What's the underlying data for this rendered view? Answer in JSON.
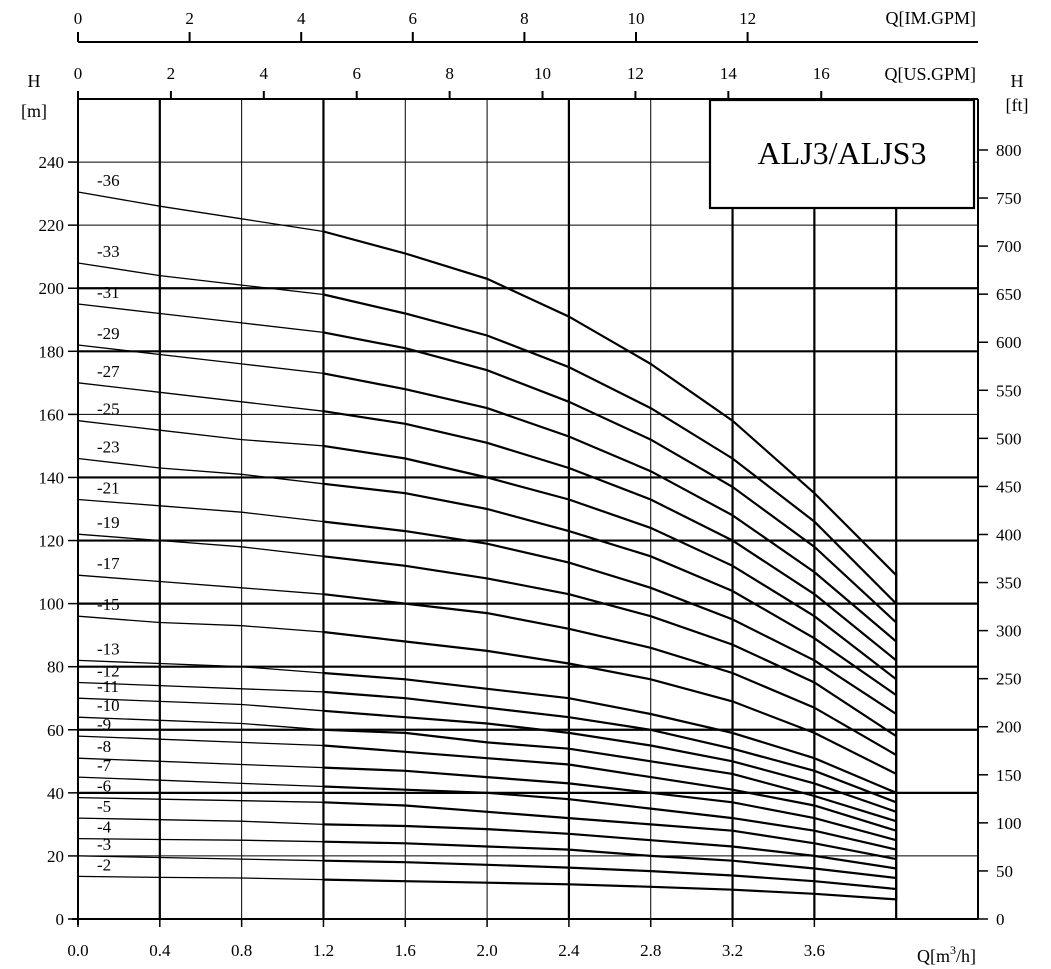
{
  "chart_data": {
    "type": "line",
    "title": "ALJ3/ALJS3",
    "x_axis": {
      "label": "Q[m³/h]",
      "label_main": "Q[m",
      "label_sup": "3",
      "label_tail": "/h]",
      "range": [
        0,
        4.0
      ],
      "ticks": [
        "0.0",
        "0.4",
        "0.8",
        "1.2",
        "1.6",
        "2.0",
        "2.4",
        "2.8",
        "3.2",
        "3.6"
      ]
    },
    "x_axis_top_us": {
      "label": "Q[US.GPM]",
      "ticks": [
        "0",
        "2",
        "4",
        "6",
        "8",
        "10",
        "12",
        "14",
        "16"
      ]
    },
    "x_axis_top_im": {
      "label": "Q[IM.GPM]",
      "ticks": [
        "0",
        "2",
        "4",
        "6",
        "8",
        "10",
        "12"
      ]
    },
    "y_axis_left": {
      "label_top": "H",
      "label_unit": "[m]",
      "range": [
        0,
        260
      ],
      "ticks": [
        "0",
        "20",
        "40",
        "60",
        "80",
        "100",
        "120",
        "140",
        "160",
        "180",
        "200",
        "220",
        "240"
      ]
    },
    "y_axis_right": {
      "label_top": "H",
      "label_unit": "[ft]",
      "ticks": [
        "0",
        "50",
        "100",
        "150",
        "200",
        "250",
        "300",
        "350",
        "400",
        "450",
        "500",
        "550",
        "600",
        "650",
        "700",
        "750",
        "800"
      ]
    },
    "grid": true,
    "series": [
      {
        "name": "-36",
        "x": [
          0,
          0.4,
          0.8,
          1.2,
          1.6,
          2.0,
          2.4,
          2.8,
          3.2,
          3.6,
          4.0
        ],
        "y": [
          230.5,
          226,
          222,
          218,
          211,
          203,
          191,
          176,
          158,
          135,
          109
        ]
      },
      {
        "name": "-33",
        "x": [
          0,
          0.4,
          0.8,
          1.2,
          1.6,
          2.0,
          2.4,
          2.8,
          3.2,
          3.6,
          4.0
        ],
        "y": [
          208,
          204,
          201,
          198,
          192,
          185,
          175,
          162,
          146,
          126,
          100
        ]
      },
      {
        "name": "-31",
        "x": [
          0,
          0.4,
          0.8,
          1.2,
          1.6,
          2.0,
          2.4,
          2.8,
          3.2,
          3.6,
          4.0
        ],
        "y": [
          195,
          192,
          189,
          186,
          181,
          174,
          164,
          152,
          137,
          118,
          94
        ]
      },
      {
        "name": "-29",
        "x": [
          0,
          0.4,
          0.8,
          1.2,
          1.6,
          2.0,
          2.4,
          2.8,
          3.2,
          3.6,
          4.0
        ],
        "y": [
          182,
          179,
          176,
          173,
          168,
          162,
          153,
          142,
          128,
          110,
          88
        ]
      },
      {
        "name": "-27",
        "x": [
          0,
          0.4,
          0.8,
          1.2,
          1.6,
          2.0,
          2.4,
          2.8,
          3.2,
          3.6,
          4.0
        ],
        "y": [
          170,
          167,
          164,
          161,
          157,
          151,
          143,
          133,
          120,
          103,
          82
        ]
      },
      {
        "name": "-25",
        "x": [
          0,
          0.4,
          0.8,
          1.2,
          1.6,
          2.0,
          2.4,
          2.8,
          3.2,
          3.6,
          4.0
        ],
        "y": [
          158,
          155,
          152,
          150,
          146,
          140,
          133,
          124,
          112,
          96,
          76
        ]
      },
      {
        "name": "-23",
        "x": [
          0,
          0.4,
          0.8,
          1.2,
          1.6,
          2.0,
          2.4,
          2.8,
          3.2,
          3.6,
          4.0
        ],
        "y": [
          146,
          143,
          141,
          138,
          135,
          130,
          123,
          115,
          104,
          89,
          71
        ]
      },
      {
        "name": "-21",
        "x": [
          0,
          0.4,
          0.8,
          1.2,
          1.6,
          2.0,
          2.4,
          2.8,
          3.2,
          3.6,
          4.0
        ],
        "y": [
          133,
          131,
          129,
          126,
          123,
          119,
          113,
          105,
          95,
          82,
          65
        ]
      },
      {
        "name": "-19",
        "x": [
          0,
          0.4,
          0.8,
          1.2,
          1.6,
          2.0,
          2.4,
          2.8,
          3.2,
          3.6,
          4.0
        ],
        "y": [
          122,
          120,
          118,
          115,
          112,
          108,
          103,
          96,
          87,
          75,
          58
        ]
      },
      {
        "name": "-17",
        "x": [
          0,
          0.4,
          0.8,
          1.2,
          1.6,
          2.0,
          2.4,
          2.8,
          3.2,
          3.6,
          4.0
        ],
        "y": [
          109,
          107,
          105,
          103,
          100,
          97,
          92,
          86,
          78,
          67,
          52
        ]
      },
      {
        "name": "-15",
        "x": [
          0,
          0.4,
          0.8,
          1.2,
          1.6,
          2.0,
          2.4,
          2.8,
          3.2,
          3.6,
          4.0
        ],
        "y": [
          96,
          94,
          93,
          91,
          88,
          85,
          81,
          76,
          69,
          59,
          46
        ]
      },
      {
        "name": "-13",
        "x": [
          0,
          0.4,
          0.8,
          1.2,
          1.6,
          2.0,
          2.4,
          2.8,
          3.2,
          3.6,
          4.0
        ],
        "y": [
          82,
          81,
          80,
          78,
          76,
          73,
          70,
          65,
          59,
          51,
          40
        ]
      },
      {
        "name": "-12",
        "x": [
          0,
          0.4,
          0.8,
          1.2,
          1.6,
          2.0,
          2.4,
          2.8,
          3.2,
          3.6,
          4.0
        ],
        "y": [
          75,
          74,
          73,
          72,
          70,
          67,
          64,
          60,
          54,
          47,
          37
        ]
      },
      {
        "name": "-11",
        "x": [
          0,
          0.4,
          0.8,
          1.2,
          1.6,
          2.0,
          2.4,
          2.8,
          3.2,
          3.6,
          4.0
        ],
        "y": [
          70,
          69,
          68,
          66,
          64,
          62,
          59,
          55,
          50,
          43,
          34
        ]
      },
      {
        "name": "-10",
        "x": [
          0,
          0.4,
          0.8,
          1.2,
          1.6,
          2.0,
          2.4,
          2.8,
          3.2,
          3.6,
          4.0
        ],
        "y": [
          64,
          63,
          62,
          60,
          59,
          56,
          54,
          50,
          46,
          39,
          31
        ]
      },
      {
        "name": "-9",
        "x": [
          0,
          0.4,
          0.8,
          1.2,
          1.6,
          2.0,
          2.4,
          2.8,
          3.2,
          3.6,
          4.0
        ],
        "y": [
          58,
          57,
          56,
          55,
          53,
          51,
          49,
          45,
          41,
          36,
          28
        ]
      },
      {
        "name": "-8",
        "x": [
          0,
          0.4,
          0.8,
          1.2,
          1.6,
          2.0,
          2.4,
          2.8,
          3.2,
          3.6,
          4.0
        ],
        "y": [
          51,
          50,
          49,
          48,
          47,
          45,
          43,
          40,
          37,
          32,
          25
        ]
      },
      {
        "name": "-7",
        "x": [
          0,
          0.4,
          0.8,
          1.2,
          1.6,
          2.0,
          2.4,
          2.8,
          3.2,
          3.6,
          4.0
        ],
        "y": [
          45,
          44,
          43,
          42,
          41,
          40,
          38,
          35,
          32,
          28,
          22
        ]
      },
      {
        "name": "-6",
        "x": [
          0,
          0.4,
          0.8,
          1.2,
          1.6,
          2.0,
          2.4,
          2.8,
          3.2,
          3.6,
          4.0
        ],
        "y": [
          38.5,
          38,
          37.5,
          37,
          36,
          34,
          32,
          30,
          28,
          24,
          19
        ]
      },
      {
        "name": "-5",
        "x": [
          0,
          0.4,
          0.8,
          1.2,
          1.6,
          2.0,
          2.4,
          2.8,
          3.2,
          3.6,
          4.0
        ],
        "y": [
          32,
          31.5,
          31,
          30,
          29.5,
          28.5,
          27,
          25,
          23,
          20,
          16
        ]
      },
      {
        "name": "-4",
        "x": [
          0,
          0.4,
          0.8,
          1.2,
          1.6,
          2.0,
          2.4,
          2.8,
          3.2,
          3.6,
          4.0
        ],
        "y": [
          25.5,
          25.2,
          25,
          24.5,
          24,
          23,
          22,
          20,
          18.5,
          16,
          13
        ]
      },
      {
        "name": "-3",
        "x": [
          0,
          0.4,
          0.8,
          1.2,
          1.6,
          2.0,
          2.4,
          2.8,
          3.2,
          3.6,
          4.0
        ],
        "y": [
          20,
          19.5,
          19,
          18.5,
          18,
          17.2,
          16.3,
          15.2,
          13.8,
          12,
          9.5
        ]
      },
      {
        "name": "-2",
        "x": [
          0,
          0.4,
          0.8,
          1.2,
          1.6,
          2.0,
          2.4,
          2.8,
          3.2,
          3.6,
          4.0
        ],
        "y": [
          13.5,
          13.2,
          13,
          12.5,
          12,
          11.5,
          11,
          10.2,
          9.3,
          8,
          6.2
        ]
      }
    ]
  }
}
